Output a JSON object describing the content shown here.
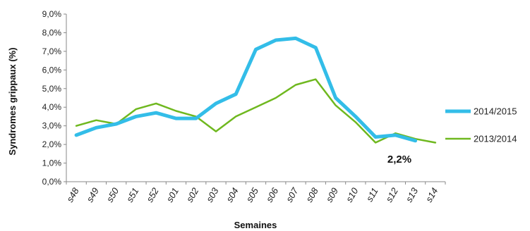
{
  "chart_data": {
    "type": "line",
    "categories": [
      "s48",
      "s49",
      "s50",
      "s51",
      "s52",
      "s01",
      "s02",
      "s03",
      "s04",
      "s05",
      "s06",
      "s07",
      "s08",
      "s09",
      "s10",
      "s11",
      "s12",
      "s13",
      "s14"
    ],
    "series": [
      {
        "name": "2014/2015",
        "color": "#33bde8",
        "values": [
          2.5,
          2.9,
          3.1,
          3.5,
          3.7,
          3.4,
          3.4,
          4.2,
          4.7,
          7.1,
          7.6,
          7.7,
          7.2,
          4.5,
          3.5,
          2.4,
          2.5,
          2.2,
          null
        ]
      },
      {
        "name": "2013/2014",
        "color": "#6fb81f",
        "values": [
          3.0,
          3.3,
          3.1,
          3.9,
          4.2,
          3.8,
          3.5,
          2.7,
          3.5,
          4.0,
          4.5,
          5.2,
          5.5,
          4.1,
          3.2,
          2.1,
          2.6,
          2.3,
          2.1
        ]
      }
    ],
    "yticks": [
      "0,0%",
      "1,0%",
      "2,0%",
      "3,0%",
      "4,0%",
      "5,0%",
      "6,0%",
      "7,0%",
      "8,0%",
      "9,0%"
    ],
    "ylim": [
      0,
      9
    ],
    "xlabel": "Semaines",
    "ylabel": "Syndromes grippaux (%)",
    "annotation": "2,2%",
    "grid": false,
    "legend_position": "right"
  }
}
